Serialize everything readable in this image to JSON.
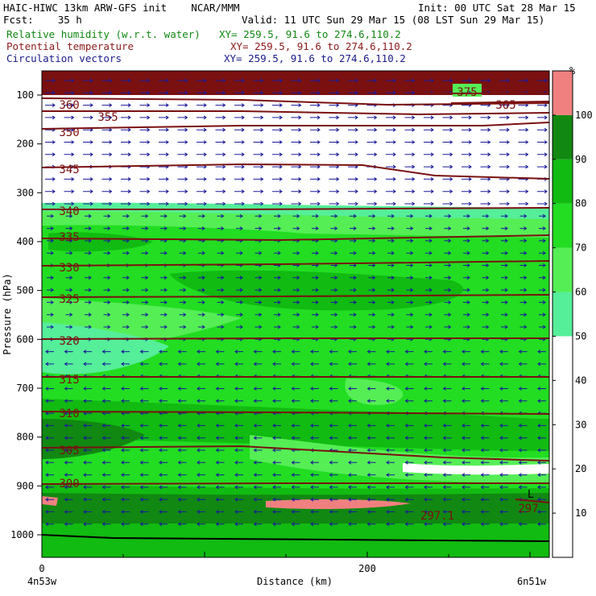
{
  "header": {
    "line1_left": "HAIC-HIWC 13km ARW-GFS init    NCAR/MMM",
    "init": "Init: 00 UTC Sat 28 Mar 15",
    "fcst_label": "Fcst:    35 h",
    "valid": "Valid: 11 UTC Sun 29 Mar 15 (08 LST Sun 29 Mar 15)",
    "fields": [
      {
        "label": "Relative humidity (w.r.t. water)",
        "xy": "XY= 259.5, 91.6 to 274.6,110.2",
        "color": "#118811"
      },
      {
        "label": "Potential temperature",
        "xy": "XY= 259.5, 91.6 to 274.6,110.2",
        "color": "#8b1a1a"
      },
      {
        "label": "Circulation vectors",
        "xy": "XY= 259.5, 91.6 to 274.6,110.2",
        "color": "#1a1a8b"
      }
    ]
  },
  "chart_data": {
    "type": "cross-section",
    "ylabel": "Pressure (hPa)",
    "xlabel": "Distance (km)",
    "x_tick_labels": [
      "0",
      "200"
    ],
    "x_end_labels": {
      "left": "4n53w",
      "right": "6n51w"
    },
    "y_tick_labels": [
      "100",
      "200",
      "300",
      "400",
      "500",
      "600",
      "700",
      "800",
      "900",
      "1000"
    ],
    "colorbar": {
      "unit": "%",
      "tick_labels": [
        "10",
        "20",
        "30",
        "40",
        "50",
        "60",
        "70",
        "80",
        "90",
        "100"
      ],
      "bands": [
        {
          "from": 0,
          "to": 50,
          "color": "#ffffff"
        },
        {
          "from": 50,
          "to": 60,
          "color": "#55ee99"
        },
        {
          "from": 60,
          "to": 70,
          "color": "#55ee55"
        },
        {
          "from": 70,
          "to": 80,
          "color": "#22dd22"
        },
        {
          "from": 80,
          "to": 90,
          "color": "#11bb11"
        },
        {
          "from": 90,
          "to": 100,
          "color": "#118811"
        },
        {
          "from": 100,
          "to": 110,
          "color": "#f08080"
        }
      ]
    },
    "theta_contours": [
      {
        "value": 375,
        "label": "375"
      },
      {
        "value": 365,
        "label": "365"
      },
      {
        "value": 360,
        "label": "360"
      },
      {
        "value": 355,
        "label": "355"
      },
      {
        "value": 350,
        "label": "350"
      },
      {
        "value": 345,
        "label": "345"
      },
      {
        "value": 340,
        "label": "340"
      },
      {
        "value": 335,
        "label": "335"
      },
      {
        "value": 330,
        "label": "330"
      },
      {
        "value": 325,
        "label": "325"
      },
      {
        "value": 320,
        "label": "320"
      },
      {
        "value": 315,
        "label": "315"
      },
      {
        "value": 310,
        "label": "310"
      },
      {
        "value": 305,
        "label": "305"
      },
      {
        "value": 300,
        "label": "300"
      },
      {
        "value": 297,
        "label": "297"
      },
      {
        "value": 297.1,
        "label": "297.1"
      }
    ],
    "topography_label": "L",
    "colors": {
      "theta": "#7a1010",
      "vectors": "#1a1a9a",
      "frame": "#000000"
    }
  }
}
